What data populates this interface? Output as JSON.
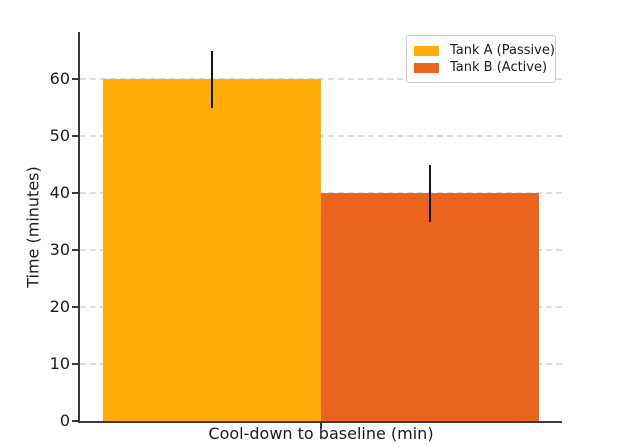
{
  "chart_data": {
    "type": "bar",
    "title": "",
    "xlabel": "Cool-down to baseline (min)",
    "ylabel": "Time (minutes)",
    "series": [
      {
        "name": "Tank A (Passive)",
        "value": 60,
        "error": 5,
        "color": "#FFAB0A"
      },
      {
        "name": "Tank B (Active)",
        "value": 40,
        "error": 5,
        "color": "#EA6420"
      }
    ],
    "yticks": [
      0,
      10,
      20,
      30,
      40,
      50,
      60
    ],
    "ylim": [
      0,
      68
    ],
    "grid": "horizontal-dashed",
    "legend_position": "upper-right",
    "error_bar_color": "#161616",
    "axis_color": "#3a3a3a",
    "gridline_color": "#dcdcdc",
    "background_color": "#ffffff"
  }
}
